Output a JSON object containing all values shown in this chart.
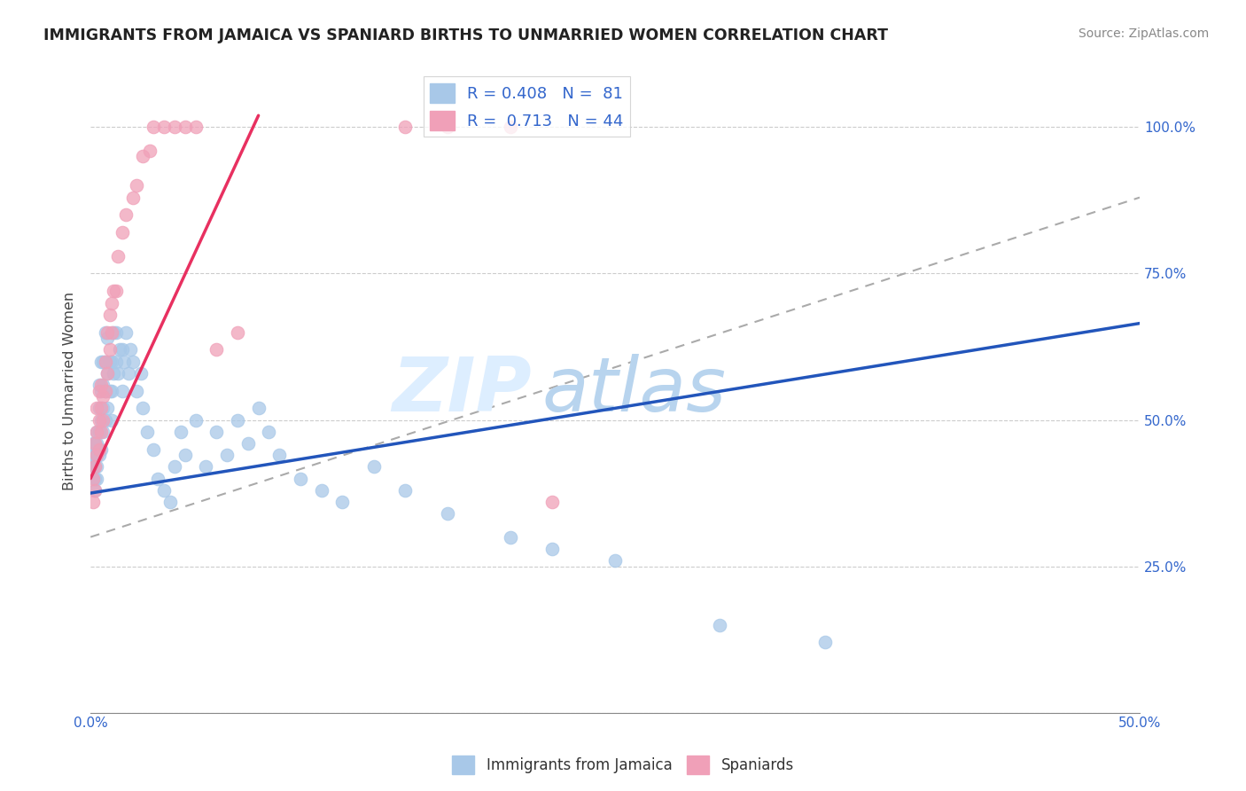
{
  "title": "IMMIGRANTS FROM JAMAICA VS SPANIARD BIRTHS TO UNMARRIED WOMEN CORRELATION CHART",
  "source": "Source: ZipAtlas.com",
  "ylabel": "Births to Unmarried Women",
  "legend_blue_label": "R = 0.408   N =  81",
  "legend_pink_label": "R =  0.713   N = 44",
  "legend_label_blue": "Immigrants from Jamaica",
  "legend_label_pink": "Spaniards",
  "blue_color": "#a8c8e8",
  "pink_color": "#f0a0b8",
  "blue_line_color": "#2255bb",
  "pink_line_color": "#e83060",
  "dashed_line_color": "#aaaaaa",
  "blue_line": {
    "x0": 0.0,
    "y0": 0.375,
    "x1": 0.5,
    "y1": 0.665
  },
  "pink_line": {
    "x0": 0.0,
    "y0": 0.4,
    "x1": 0.08,
    "y1": 1.02
  },
  "dash_line": {
    "x0": 0.0,
    "y0": 0.3,
    "x1": 0.5,
    "y1": 0.88
  },
  "xlim": [
    0.0,
    0.5
  ],
  "ylim": [
    0.0,
    1.1
  ],
  "xticks": [
    0.0,
    0.05,
    0.1,
    0.15,
    0.2,
    0.25,
    0.3,
    0.35,
    0.4,
    0.45,
    0.5
  ],
  "xticklabels": [
    "0.0%",
    "",
    "",
    "",
    "",
    "",
    "",
    "",
    "",
    "",
    "50.0%"
  ],
  "yticks": [
    0.0,
    0.25,
    0.5,
    0.75,
    1.0
  ],
  "yticklabels_right": [
    "",
    "25.0%",
    "50.0%",
    "75.0%",
    "100.0%"
  ],
  "blue_scatter_x": [
    0.001,
    0.001,
    0.001,
    0.002,
    0.002,
    0.002,
    0.002,
    0.002,
    0.003,
    0.003,
    0.003,
    0.003,
    0.003,
    0.004,
    0.004,
    0.004,
    0.004,
    0.005,
    0.005,
    0.005,
    0.005,
    0.006,
    0.006,
    0.006,
    0.006,
    0.007,
    0.007,
    0.007,
    0.007,
    0.008,
    0.008,
    0.008,
    0.009,
    0.009,
    0.01,
    0.01,
    0.01,
    0.011,
    0.011,
    0.012,
    0.012,
    0.013,
    0.014,
    0.015,
    0.015,
    0.016,
    0.017,
    0.018,
    0.019,
    0.02,
    0.022,
    0.024,
    0.025,
    0.027,
    0.03,
    0.032,
    0.035,
    0.038,
    0.04,
    0.043,
    0.045,
    0.05,
    0.055,
    0.06,
    0.065,
    0.07,
    0.075,
    0.08,
    0.085,
    0.09,
    0.1,
    0.11,
    0.12,
    0.135,
    0.15,
    0.17,
    0.2,
    0.22,
    0.25,
    0.3,
    0.35
  ],
  "blue_scatter_y": [
    0.42,
    0.44,
    0.46,
    0.38,
    0.4,
    0.42,
    0.44,
    0.46,
    0.4,
    0.42,
    0.44,
    0.46,
    0.48,
    0.44,
    0.48,
    0.52,
    0.56,
    0.45,
    0.5,
    0.55,
    0.6,
    0.48,
    0.52,
    0.56,
    0.6,
    0.5,
    0.55,
    0.6,
    0.65,
    0.52,
    0.58,
    0.64,
    0.55,
    0.6,
    0.5,
    0.55,
    0.6,
    0.58,
    0.65,
    0.6,
    0.65,
    0.58,
    0.62,
    0.55,
    0.62,
    0.6,
    0.65,
    0.58,
    0.62,
    0.6,
    0.55,
    0.58,
    0.52,
    0.48,
    0.45,
    0.4,
    0.38,
    0.36,
    0.42,
    0.48,
    0.44,
    0.5,
    0.42,
    0.48,
    0.44,
    0.5,
    0.46,
    0.52,
    0.48,
    0.44,
    0.4,
    0.38,
    0.36,
    0.42,
    0.38,
    0.34,
    0.3,
    0.28,
    0.26,
    0.15,
    0.12
  ],
  "pink_scatter_x": [
    0.001,
    0.001,
    0.002,
    0.002,
    0.002,
    0.003,
    0.003,
    0.003,
    0.004,
    0.004,
    0.004,
    0.005,
    0.005,
    0.005,
    0.006,
    0.006,
    0.007,
    0.007,
    0.008,
    0.008,
    0.009,
    0.009,
    0.01,
    0.01,
    0.011,
    0.012,
    0.013,
    0.015,
    0.017,
    0.02,
    0.022,
    0.025,
    0.028,
    0.03,
    0.035,
    0.04,
    0.045,
    0.05,
    0.06,
    0.07,
    0.15,
    0.17,
    0.2,
    0.22
  ],
  "pink_scatter_y": [
    0.36,
    0.4,
    0.38,
    0.42,
    0.46,
    0.44,
    0.48,
    0.52,
    0.45,
    0.5,
    0.55,
    0.48,
    0.52,
    0.56,
    0.5,
    0.54,
    0.55,
    0.6,
    0.58,
    0.65,
    0.62,
    0.68,
    0.65,
    0.7,
    0.72,
    0.72,
    0.78,
    0.82,
    0.85,
    0.88,
    0.9,
    0.95,
    0.96,
    1.0,
    1.0,
    1.0,
    1.0,
    1.0,
    0.62,
    0.65,
    1.0,
    1.0,
    1.0,
    0.36
  ]
}
